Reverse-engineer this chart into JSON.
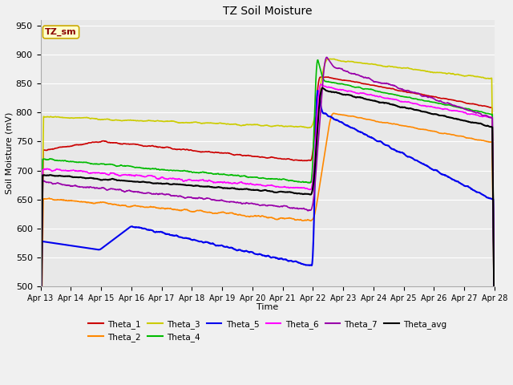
{
  "title": "TZ Soil Moisture",
  "xlabel": "Time",
  "ylabel": "Soil Moisture (mV)",
  "ylim": [
    500,
    960
  ],
  "yticks": [
    500,
    550,
    600,
    650,
    700,
    750,
    800,
    850,
    900,
    950
  ],
  "fig_bg": "#f0f0f0",
  "plot_bg": "#e8e8e8",
  "grid_color": "#ffffff",
  "legend_label": "TZ_sm",
  "series_order": [
    "Theta_1",
    "Theta_2",
    "Theta_3",
    "Theta_4",
    "Theta_5",
    "Theta_6",
    "Theta_7",
    "Theta_avg"
  ],
  "series": {
    "Theta_1": {
      "color": "#cc0000",
      "lw": 1.2
    },
    "Theta_2": {
      "color": "#ff8800",
      "lw": 1.2
    },
    "Theta_3": {
      "color": "#cccc00",
      "lw": 1.2
    },
    "Theta_4": {
      "color": "#00bb00",
      "lw": 1.2
    },
    "Theta_5": {
      "color": "#0000ee",
      "lw": 1.5
    },
    "Theta_6": {
      "color": "#ff00ff",
      "lw": 1.2
    },
    "Theta_7": {
      "color": "#9900aa",
      "lw": 1.2
    },
    "Theta_avg": {
      "color": "#000000",
      "lw": 1.5
    }
  },
  "date_labels": [
    "Apr 13",
    "Apr 14",
    "Apr 15",
    "Apr 16",
    "Apr 17",
    "Apr 18",
    "Apr 19",
    "Apr 20",
    "Apr 21",
    "Apr 22",
    "Apr 23",
    "Apr 24",
    "Apr 25",
    "Apr 26",
    "Apr 27",
    "Apr 28"
  ]
}
